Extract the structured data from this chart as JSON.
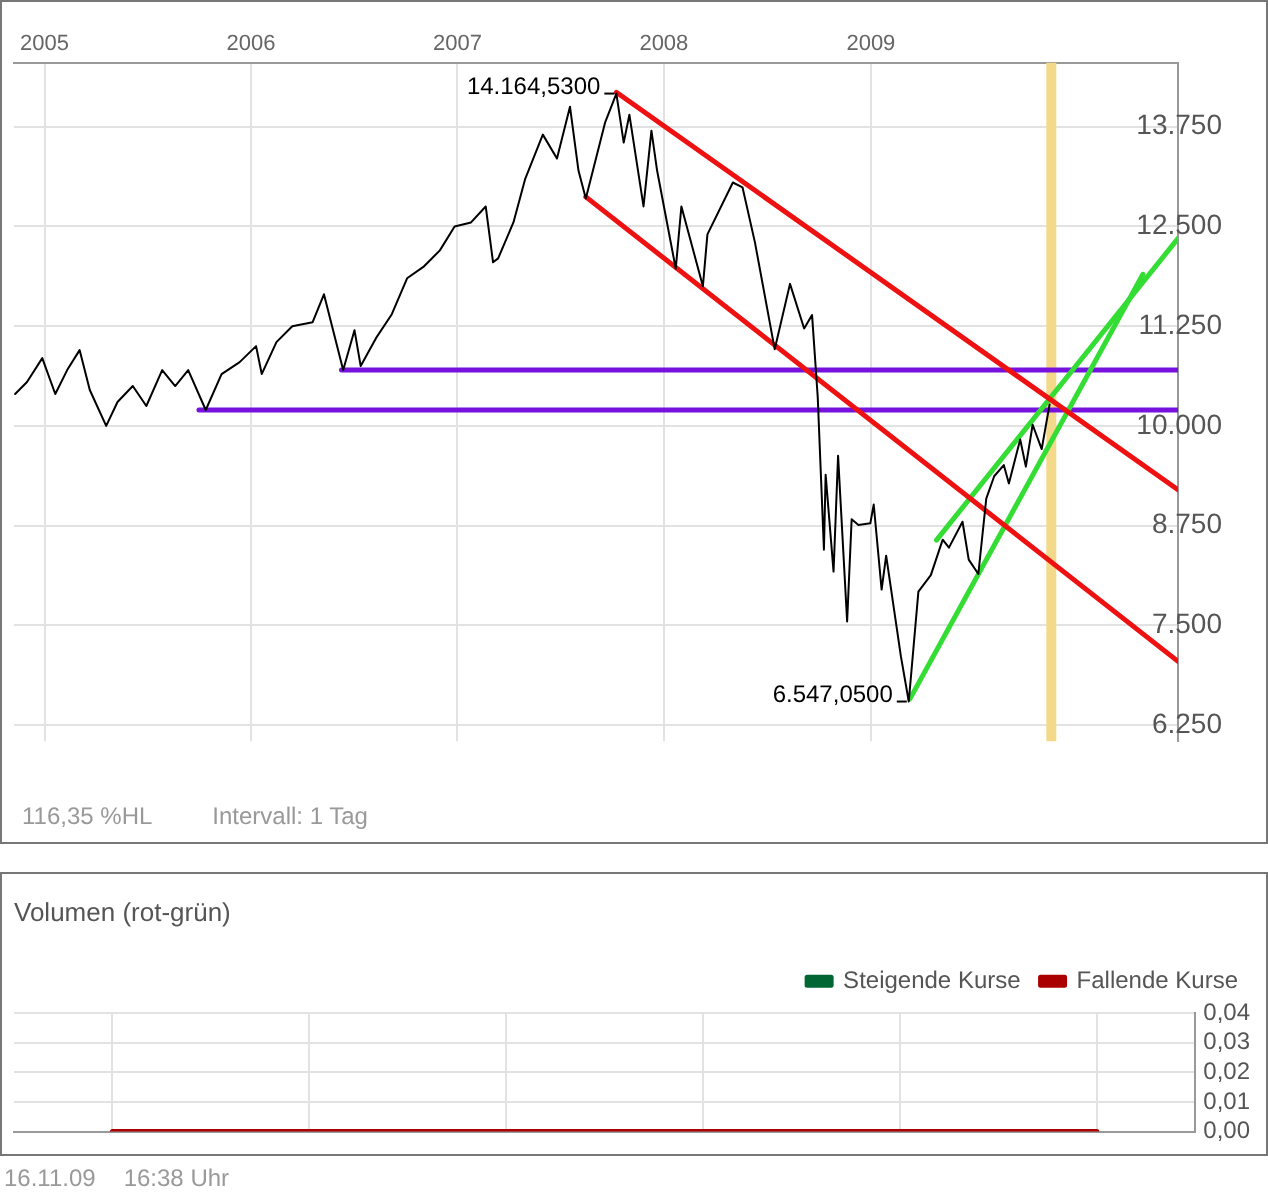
{
  "chart_data": [
    {
      "type": "line",
      "xlim": [
        "2004-11-08",
        "2010-06-28"
      ],
      "xticks": [
        "2005",
        "2006",
        "2007",
        "2008",
        "2009"
      ],
      "ylim": [
        6050,
        14550
      ],
      "yticks": [
        {
          "value": 6250,
          "label": "6.250"
        },
        {
          "value": 7500,
          "label": "7.500"
        },
        {
          "value": 8750,
          "label": "8.750"
        },
        {
          "value": 10000,
          "label": "10.000"
        },
        {
          "value": 11250,
          "label": "11.250"
        },
        {
          "value": 12500,
          "label": "12.500"
        },
        {
          "value": 13750,
          "label": "13.750"
        }
      ],
      "grid": true,
      "legend": false,
      "marker": "none",
      "x": [
        "2004-11-10",
        "2004-12-01",
        "2004-12-28",
        "2005-01-20",
        "2005-02-10",
        "2005-03-04",
        "2005-03-22",
        "2005-04-20",
        "2005-05-10",
        "2005-06-06",
        "2005-06-30",
        "2005-07-28",
        "2005-08-20",
        "2005-09-12",
        "2005-10-13",
        "2005-11-10",
        "2005-12-12",
        "2006-01-10",
        "2006-01-20",
        "2006-02-15",
        "2006-03-15",
        "2006-04-20",
        "2006-05-10",
        "2006-06-13",
        "2006-07-03",
        "2006-07-14",
        "2006-08-10",
        "2006-09-07",
        "2006-10-04",
        "2006-11-03",
        "2006-12-01",
        "2006-12-27",
        "2007-01-25",
        "2007-02-20",
        "2007-03-05",
        "2007-03-14",
        "2007-04-10",
        "2007-05-01",
        "2007-06-01",
        "2007-06-26",
        "2007-07-19",
        "2007-08-03",
        "2007-08-16",
        "2007-09-19",
        "2007-10-09",
        "2007-10-22",
        "2007-11-01",
        "2007-11-26",
        "2007-12-10",
        "2007-12-20",
        "2008-01-22",
        "2008-02-01",
        "2008-03-10",
        "2008-03-18",
        "2008-05-02",
        "2008-05-19",
        "2008-06-10",
        "2008-07-15",
        "2008-08-11",
        "2008-09-05",
        "2008-09-19",
        "2008-09-29",
        "2008-10-10",
        "2008-10-13",
        "2008-10-27",
        "2008-11-04",
        "2008-11-20",
        "2008-11-28",
        "2008-12-10",
        "2008-12-31",
        "2009-01-06",
        "2009-01-20",
        "2009-01-28",
        "2009-02-23",
        "2009-03-09",
        "2009-03-26",
        "2009-04-17",
        "2009-05-08",
        "2009-05-19",
        "2009-06-12",
        "2009-06-23",
        "2009-07-10",
        "2009-07-24",
        "2009-08-07",
        "2009-08-24",
        "2009-09-02",
        "2009-09-22",
        "2009-10-02",
        "2009-10-14",
        "2009-10-30",
        "2009-11-13"
      ],
      "series": [
        {
          "color": "#000000",
          "values": [
            10400,
            10550,
            10850,
            10400,
            10700,
            10950,
            10450,
            10000,
            10300,
            10500,
            10250,
            10700,
            10500,
            10700,
            10200,
            10650,
            10800,
            11000,
            10650,
            11050,
            11250,
            11300,
            11650,
            10700,
            11200,
            10750,
            11100,
            11400,
            11850,
            12000,
            12200,
            12500,
            12550,
            12750,
            12050,
            12100,
            12550,
            13100,
            13650,
            13350,
            14000,
            13200,
            12850,
            13800,
            14164.53,
            13550,
            13900,
            12750,
            13700,
            13200,
            11970,
            12750,
            11750,
            12400,
            13050,
            12990,
            12300,
            10960,
            11780,
            11220,
            11390,
            10365,
            8450,
            9390,
            8175,
            9625,
            7550,
            8830,
            8760,
            8780,
            9015,
            7950,
            8375,
            7115,
            6547.05,
            7925,
            8130,
            8575,
            8475,
            8800,
            8325,
            8145,
            9090,
            9370,
            9510,
            9280,
            9830,
            9490,
            10015,
            9710,
            10270
          ]
        },
        {
          "color": "#ee1111",
          "x": [
            "2007-10-09",
            "2010-06-28"
          ],
          "values": [
            14180,
            9200
          ]
        },
        {
          "color": "#ee1111",
          "x": [
            "2007-08-16",
            "2010-06-28"
          ],
          "values": [
            12870,
            7050
          ]
        },
        {
          "color": "#33dd33",
          "x": [
            "2009-03-11",
            "2010-04-27"
          ],
          "values": [
            6580,
            11900
          ]
        },
        {
          "color": "#33dd33",
          "x": [
            "2009-04-27",
            "2010-06-28"
          ],
          "values": [
            8570,
            12350
          ]
        },
        {
          "color": "#7711dd",
          "x": [
            "2006-06-10",
            "2010-06-28"
          ],
          "values": [
            10700,
            10700
          ]
        },
        {
          "color": "#7711dd",
          "x": [
            "2005-10-01",
            "2010-06-28"
          ],
          "values": [
            10200,
            10200
          ]
        }
      ],
      "ref_lines": [
        {
          "axis": "x",
          "value": "2009-11-16",
          "color": "#f5d98a"
        }
      ],
      "annotations": [
        {
          "text": "14.164,5300",
          "x": "2007-10-09",
          "y": 14164.53
        },
        {
          "text": "6.547,0500",
          "x": "2009-03-09",
          "y": 6547.05
        },
        "116,35 %HL",
        "Intervall: 1 Tag"
      ]
    },
    {
      "type": "line",
      "title": "Volumen (rot-grün)",
      "categories": [
        null,
        null,
        null,
        null,
        null,
        null
      ],
      "ylim": [
        0,
        0.04
      ],
      "yticks": [
        {
          "value": 0,
          "label": "0,00"
        },
        {
          "value": 0.01,
          "label": "0,01"
        },
        {
          "value": 0.02,
          "label": "0,02"
        },
        {
          "value": 0.03,
          "label": "0,03"
        },
        {
          "value": 0.04,
          "label": "0,04"
        }
      ],
      "grid": true,
      "legend": "top right",
      "marker": "none",
      "tick_labels": "y",
      "series": [
        {
          "name": "Steigende Kurse",
          "color": "#006633",
          "values": [
            null,
            null,
            null,
            null,
            null,
            null
          ]
        },
        {
          "name": "Fallende Kurse",
          "color": "#aa0000",
          "values": [
            0,
            0,
            0,
            0,
            0,
            0
          ]
        }
      ],
      "annotations": [
        "16.11.09",
        "16:38 Uhr"
      ]
    }
  ]
}
